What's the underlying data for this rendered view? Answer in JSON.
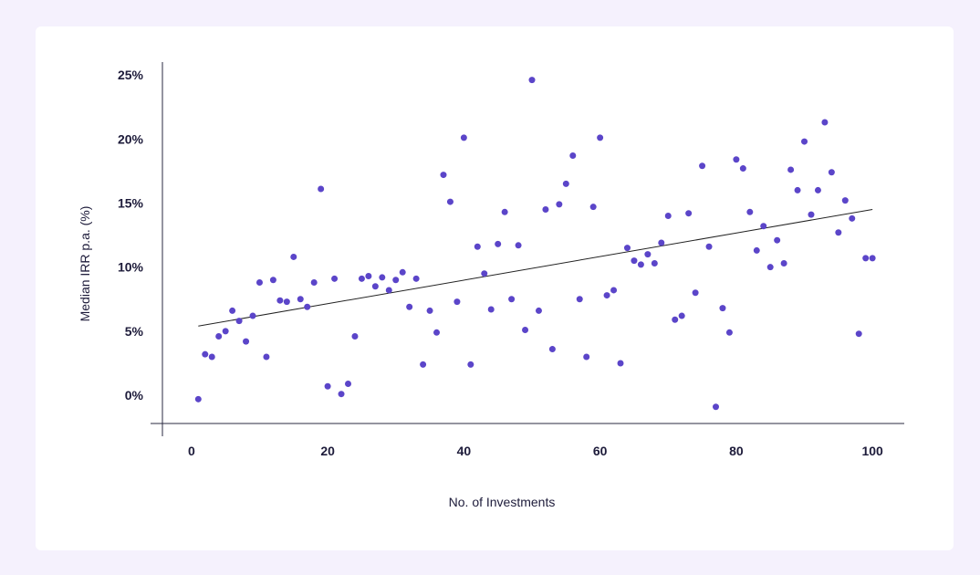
{
  "chart_data": {
    "type": "scatter",
    "title": "",
    "xlabel": "No. of Investments",
    "ylabel": "Median IRR p.a. (%)",
    "xlim": [
      -4,
      104
    ],
    "ylim": [
      -2.2,
      26
    ],
    "x_ticks": [
      0,
      20,
      40,
      60,
      80,
      100
    ],
    "x_tick_labels": [
      "0",
      "20",
      "40",
      "60",
      "80",
      "100"
    ],
    "y_ticks": [
      0,
      5,
      10,
      15,
      20,
      25
    ],
    "y_tick_labels": [
      "0%",
      "5%",
      "10%",
      "15%",
      "20%",
      "25%"
    ],
    "grid": false,
    "point_color": "#5b45c9",
    "trendline": {
      "x": [
        1,
        100
      ],
      "y": [
        5.4,
        14.5
      ],
      "color": "#222222"
    },
    "series": [
      {
        "x": [
          1,
          2,
          3,
          4,
          5,
          6,
          7,
          8,
          9,
          10,
          11,
          12,
          13,
          14,
          15,
          16,
          17,
          18,
          19,
          20,
          21,
          22,
          23,
          24,
          25,
          26,
          27,
          28,
          29,
          30,
          31,
          32,
          33,
          34,
          35,
          36,
          37,
          38,
          39,
          40,
          41,
          42,
          43,
          44,
          45,
          46,
          47,
          48,
          49,
          50,
          51,
          52,
          53,
          54,
          55,
          56,
          57,
          58,
          59,
          60,
          61,
          62,
          63,
          64,
          65,
          66,
          67,
          68,
          69,
          70,
          71,
          72,
          73,
          74,
          75,
          76,
          77,
          78,
          79,
          80,
          81,
          82,
          83,
          84,
          85,
          86,
          87,
          88,
          89,
          90,
          91,
          92,
          93,
          94,
          95,
          96,
          97,
          98,
          99,
          100
        ],
        "y": [
          -0.3,
          3.2,
          3.0,
          4.6,
          5.0,
          6.6,
          5.8,
          4.2,
          6.2,
          8.8,
          3.0,
          9.0,
          7.4,
          7.3,
          10.8,
          7.5,
          6.9,
          8.8,
          16.1,
          0.7,
          9.1,
          0.1,
          0.9,
          4.6,
          9.1,
          9.3,
          8.5,
          9.2,
          8.2,
          9.0,
          9.6,
          6.9,
          9.1,
          2.4,
          6.6,
          4.9,
          17.2,
          15.1,
          7.3,
          20.1,
          2.4,
          11.6,
          9.5,
          6.7,
          11.8,
          14.3,
          7.5,
          11.7,
          5.1,
          24.6,
          6.6,
          14.5,
          3.6,
          14.9,
          16.5,
          18.7,
          7.5,
          3.0,
          14.7,
          20.1,
          7.8,
          8.2,
          2.5,
          11.5,
          10.5,
          10.2,
          11.0,
          10.3,
          11.9,
          14.0,
          5.9,
          6.2,
          14.2,
          8.0,
          17.9,
          11.6,
          -0.9,
          6.8,
          4.9,
          18.4,
          17.7,
          14.3,
          11.3,
          13.2,
          10.0,
          12.1,
          10.3,
          17.6,
          16.0,
          19.8,
          14.1,
          16.0,
          21.3,
          17.4,
          12.7,
          15.2,
          13.8,
          4.8,
          10.7,
          10.7
        ]
      }
    ]
  }
}
